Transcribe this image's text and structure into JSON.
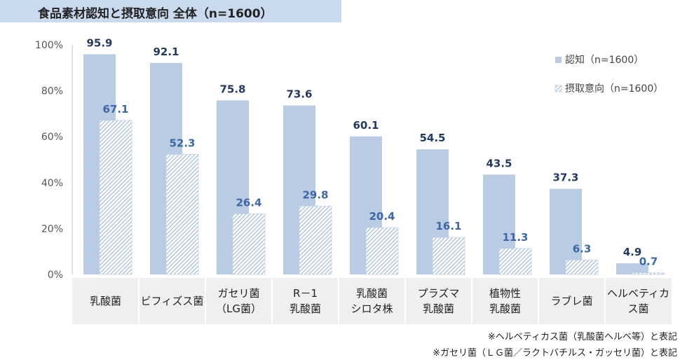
{
  "title": "食品素材認知と摂取意向 全体（n=1600）",
  "chart_data": {
    "type": "bar",
    "title": "食品素材認知と摂取意向 全体（n=1600）",
    "categories": [
      [
        "乳酸菌"
      ],
      [
        "ビフィズス菌"
      ],
      [
        "ガセリ菌",
        "（LG菌）"
      ],
      [
        "R－1",
        "乳酸菌"
      ],
      [
        "乳酸菌",
        "シロタ株"
      ],
      [
        "プラズマ",
        "乳酸菌"
      ],
      [
        "植物性",
        "乳酸菌"
      ],
      [
        "ラブレ菌"
      ],
      [
        "ヘルベティカ",
        "ス菌"
      ]
    ],
    "series": [
      {
        "name": "認知（n=1600）",
        "values": [
          95.9,
          92.1,
          75.8,
          73.6,
          60.1,
          54.5,
          43.5,
          37.3,
          4.9
        ],
        "color": "#b9cce4",
        "label_color": "#243a5e"
      },
      {
        "name": "摂取意向（n=1600）",
        "values": [
          67.1,
          52.3,
          26.4,
          29.8,
          20.4,
          16.1,
          11.3,
          6.3,
          0.7
        ],
        "color": "#b9cce4",
        "label_color": "#3d67a6"
      }
    ],
    "value_labels": {
      "s0": [
        "95.9",
        "92.1",
        "75.8",
        "73.6",
        "60.1",
        "54.5",
        "43.5",
        "37.3",
        "4.9"
      ],
      "s1": [
        "67.1",
        "52.3",
        "26.4",
        "29.8",
        "20.4",
        "16.1",
        "11.3",
        "6.3",
        "0.7"
      ]
    },
    "yticks": [
      "100%",
      "80%",
      "60%",
      "40%",
      "20%",
      "0%"
    ],
    "ylim": [
      0,
      100
    ],
    "xlabel": "",
    "ylabel": "",
    "legend": [
      "認知（n=1600）",
      "摂取意向（n=1600）"
    ],
    "legend_position": "top-right",
    "grid": false
  },
  "notes": [
    "※ヘルベティカス菌（乳酸菌ヘルベ等）と表記",
    "※ガセリ菌（ＬＧ菌／ラクトバチルス・ガッセリ菌）と表記"
  ]
}
